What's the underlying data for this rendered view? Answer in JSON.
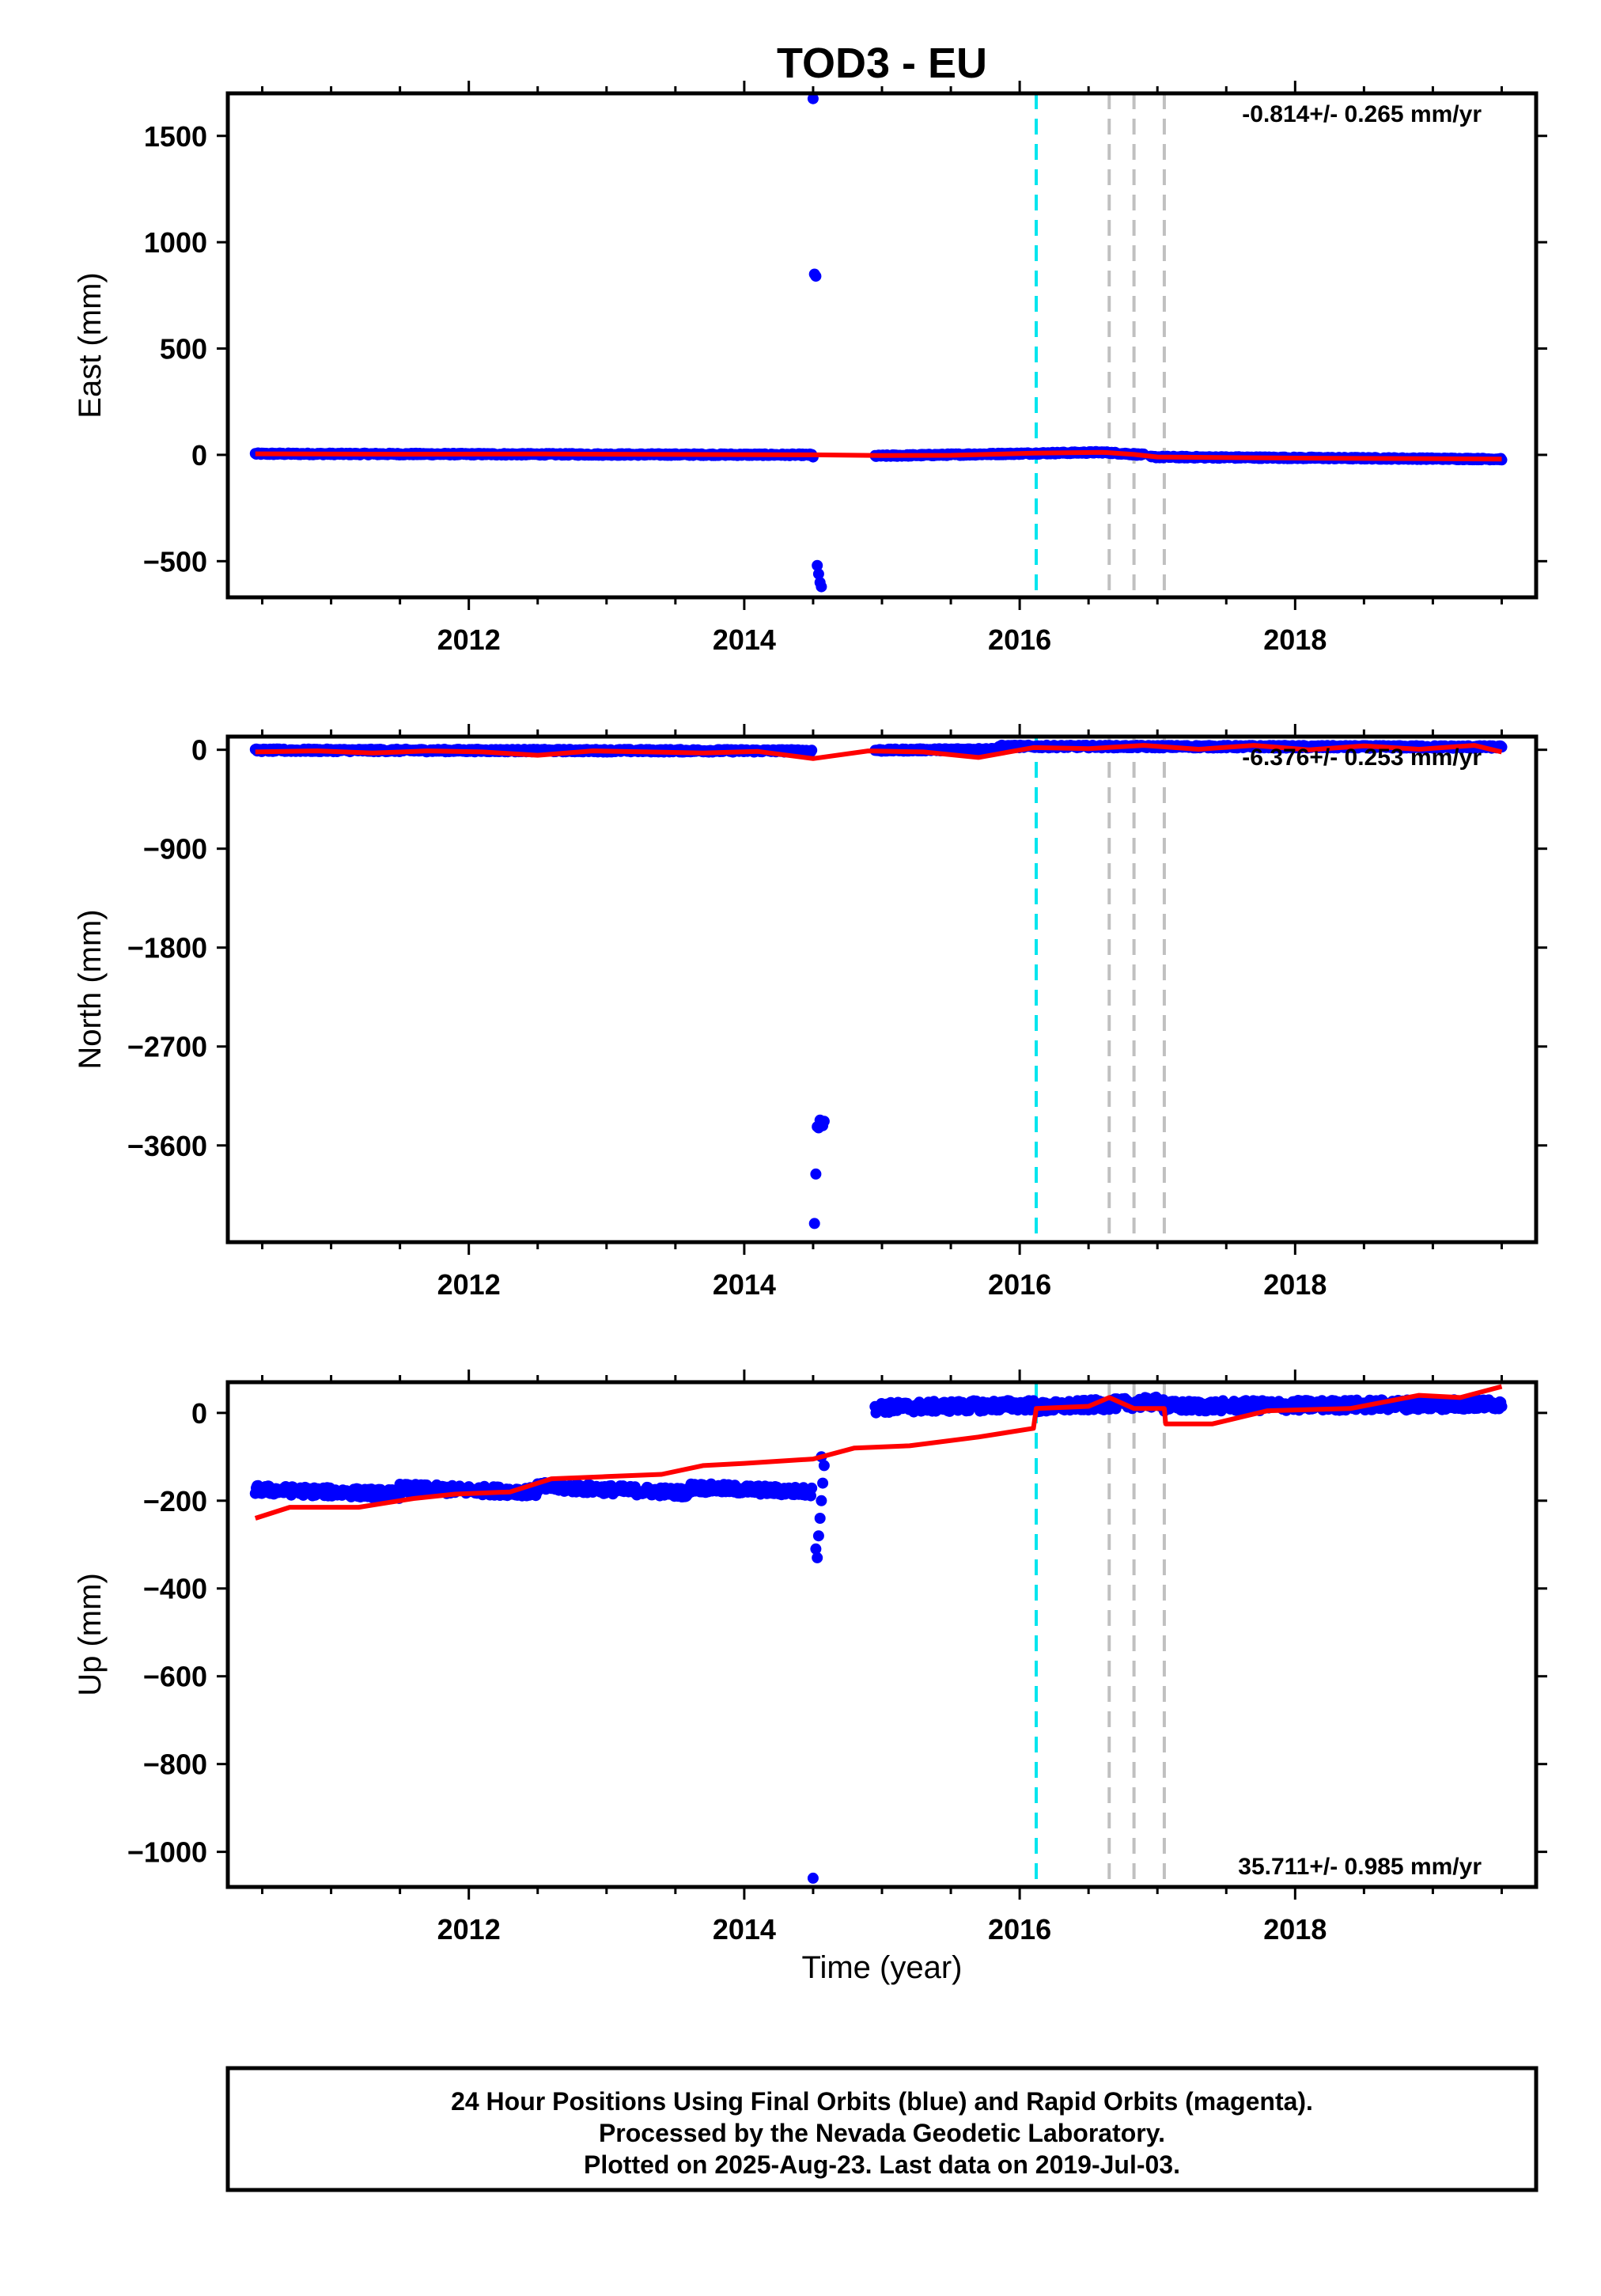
{
  "title": "TOD3 - EU",
  "colors": {
    "final_points": "#0000ff",
    "model": "#ff0000",
    "equipment_line": "#00e5ee",
    "other_line": "#c0c0c0",
    "frame": "#000000"
  },
  "xaxis": {
    "label": "Time (year)",
    "range": [
      2010.25,
      2019.75
    ],
    "major_ticks": [
      2012,
      2014,
      2016,
      2018
    ],
    "minor_ticks": [
      2010.5,
      2011.0,
      2011.5,
      2012.5,
      2013.0,
      2013.5,
      2014.5,
      2015.0,
      2015.5,
      2016.5,
      2017.0,
      2017.5,
      2018.5,
      2019.0,
      2019.5
    ]
  },
  "event_lines": [
    {
      "kind": "equipment",
      "x": 2016.12
    },
    {
      "kind": "other",
      "x": 2016.65
    },
    {
      "kind": "other",
      "x": 2016.83
    },
    {
      "kind": "other",
      "x": 2017.05
    }
  ],
  "footer": {
    "line1": "24 Hour Positions Using Final Orbits (blue) and Rapid Orbits (magenta).",
    "line2": "Processed by the Nevada Geodetic Laboratory.",
    "line3": "Plotted on 2025-Aug-23. Last data on 2019-Jul-03."
  },
  "chart_data": [
    {
      "type": "scatter",
      "component": "east",
      "ylabel": "East (mm)",
      "ylim": [
        -670,
        1700
      ],
      "yticks": [
        -500,
        0,
        500,
        1000,
        1500
      ],
      "ytick_labels": [
        "−500",
        "0",
        "500",
        "1000",
        "1500"
      ],
      "rate_label": "-0.814+/- 0.265 mm/yr",
      "rate_position": "top-right",
      "series": [
        {
          "role": "final-points",
          "segments": [
            {
              "x_start": 2010.45,
              "x_end": 2014.49,
              "y_start": 5,
              "y_end": 0,
              "jitter": 4
            },
            {
              "x_start": 2014.95,
              "x_end": 2016.6,
              "y_start": -5,
              "y_end": 12,
              "jitter": 4
            },
            {
              "x_start": 2016.6,
              "x_end": 2016.9,
              "y_start": 12,
              "y_end": 0,
              "jitter": 4
            },
            {
              "x_start": 2016.95,
              "x_end": 2019.5,
              "y_start": -10,
              "y_end": -20,
              "jitter": 4
            }
          ]
        },
        {
          "role": "outlier-points",
          "points": [
            [
              2014.5,
              1675
            ],
            [
              2014.51,
              850
            ],
            [
              2014.52,
              840
            ],
            [
              2014.53,
              -520
            ],
            [
              2014.54,
              -560
            ],
            [
              2014.55,
              -600
            ],
            [
              2014.56,
              -620
            ],
            [
              2014.5,
              -10
            ]
          ]
        },
        {
          "role": "model-line",
          "points": [
            [
              2010.45,
              5
            ],
            [
              2011.5,
              3
            ],
            [
              2012.5,
              4
            ],
            [
              2013.5,
              2
            ],
            [
              2014.5,
              0
            ],
            [
              2015.0,
              -3
            ],
            [
              2015.5,
              -2
            ],
            [
              2016.1,
              8
            ],
            [
              2016.6,
              12
            ],
            [
              2016.83,
              2
            ],
            [
              2017.0,
              -10
            ],
            [
              2018.0,
              -15
            ],
            [
              2019.0,
              -18
            ],
            [
              2019.5,
              -20
            ]
          ]
        }
      ]
    },
    {
      "type": "scatter",
      "component": "north",
      "ylabel": "North (mm)",
      "ylim": [
        -4480,
        120
      ],
      "yticks": [
        -3600,
        -2700,
        -1800,
        -900,
        0
      ],
      "ytick_labels": [
        "−3600",
        "−2700",
        "−1800",
        "−900",
        "0"
      ],
      "rate_label": "-6.376+/- 0.253 mm/yr",
      "rate_position": "top-right",
      "series": [
        {
          "role": "final-points",
          "segments": [
            {
              "x_start": 2010.45,
              "x_end": 2014.49,
              "y_start": -5,
              "y_end": -10,
              "jitter": 12
            },
            {
              "x_start": 2014.95,
              "x_end": 2015.85,
              "y_start": -5,
              "y_end": 5,
              "jitter": 10
            },
            {
              "x_start": 2015.85,
              "x_end": 2019.5,
              "y_start": 30,
              "y_end": 25,
              "jitter": 12
            }
          ]
        },
        {
          "role": "outlier-points",
          "points": [
            [
              2014.55,
              -3370
            ],
            [
              2014.56,
              -3400
            ],
            [
              2014.57,
              -3420
            ],
            [
              2014.53,
              -3430
            ],
            [
              2014.58,
              -3380
            ],
            [
              2014.52,
              -3860
            ],
            [
              2014.51,
              -4310
            ],
            [
              2014.54,
              -3440
            ]
          ]
        },
        {
          "role": "model-line",
          "points": [
            [
              2010.45,
              -20
            ],
            [
              2010.9,
              -10
            ],
            [
              2011.3,
              -30
            ],
            [
              2011.7,
              -10
            ],
            [
              2012.1,
              -20
            ],
            [
              2012.5,
              -50
            ],
            [
              2012.9,
              -10
            ],
            [
              2013.3,
              -20
            ],
            [
              2013.7,
              -30
            ],
            [
              2014.1,
              -15
            ],
            [
              2014.5,
              -80
            ],
            [
              2014.9,
              -10
            ],
            [
              2015.3,
              -20
            ],
            [
              2015.7,
              -70
            ],
            [
              2016.1,
              20
            ],
            [
              2016.5,
              10
            ],
            [
              2016.9,
              40
            ],
            [
              2017.3,
              5
            ],
            [
              2017.7,
              40
            ],
            [
              2018.1,
              0
            ],
            [
              2018.5,
              35
            ],
            [
              2018.9,
              5
            ],
            [
              2019.3,
              40
            ],
            [
              2019.5,
              -20
            ]
          ]
        }
      ]
    },
    {
      "type": "scatter",
      "component": "up",
      "ylabel": "Up (mm)",
      "ylim": [
        -1080,
        70
      ],
      "yticks": [
        -1000,
        -800,
        -600,
        -400,
        -200,
        0
      ],
      "ytick_labels": [
        "−1000",
        "−800",
        "−600",
        "−400",
        "−200",
        "0"
      ],
      "rate_label": "35.711+/- 0.985 mm/yr",
      "rate_position": "bottom-right",
      "series": [
        {
          "role": "final-points",
          "segments": [
            {
              "x_start": 2010.45,
              "x_end": 2011.5,
              "y_start": -175,
              "y_end": -185,
              "jitter": 10
            },
            {
              "x_start": 2011.5,
              "x_end": 2012.5,
              "y_start": -172,
              "y_end": -180,
              "jitter": 10
            },
            {
              "x_start": 2012.5,
              "x_end": 2013.6,
              "y_start": -168,
              "y_end": -182,
              "jitter": 10
            },
            {
              "x_start": 2013.6,
              "x_end": 2014.49,
              "y_start": -170,
              "y_end": -180,
              "jitter": 10
            },
            {
              "x_start": 2014.95,
              "x_end": 2016.1,
              "y_start": 12,
              "y_end": 18,
              "jitter": 12
            },
            {
              "x_start": 2016.1,
              "x_end": 2017.05,
              "y_start": 12,
              "y_end": 25,
              "jitter": 12
            },
            {
              "x_start": 2017.05,
              "x_end": 2019.5,
              "y_start": 15,
              "y_end": 20,
              "jitter": 12
            }
          ]
        },
        {
          "role": "outlier-points",
          "points": [
            [
              2014.5,
              -1060
            ],
            [
              2014.53,
              -330
            ],
            [
              2014.52,
              -310
            ],
            [
              2014.54,
              -280
            ],
            [
              2014.55,
              -240
            ],
            [
              2014.56,
              -200
            ],
            [
              2014.57,
              -160
            ],
            [
              2014.58,
              -120
            ],
            [
              2014.56,
              -100
            ]
          ]
        },
        {
          "role": "model-line",
          "points": [
            [
              2010.45,
              -240
            ],
            [
              2010.7,
              -215
            ],
            [
              2011.2,
              -215
            ],
            [
              2011.6,
              -195
            ],
            [
              2011.9,
              -185
            ],
            [
              2012.3,
              -180
            ],
            [
              2012.6,
              -150
            ],
            [
              2013.0,
              -145
            ],
            [
              2013.4,
              -140
            ],
            [
              2013.7,
              -120
            ],
            [
              2014.0,
              -115
            ],
            [
              2014.5,
              -105
            ],
            [
              2014.8,
              -80
            ],
            [
              2015.2,
              -75
            ],
            [
              2015.7,
              -55
            ],
            [
              2016.1,
              -35
            ],
            [
              2016.12,
              10
            ],
            [
              2016.5,
              15
            ],
            [
              2016.65,
              35
            ],
            [
              2016.83,
              10
            ],
            [
              2017.05,
              10
            ],
            [
              2017.06,
              -25
            ],
            [
              2017.4,
              -25
            ],
            [
              2017.8,
              5
            ],
            [
              2018.4,
              10
            ],
            [
              2018.9,
              40
            ],
            [
              2019.2,
              35
            ],
            [
              2019.5,
              60
            ]
          ]
        }
      ]
    }
  ]
}
